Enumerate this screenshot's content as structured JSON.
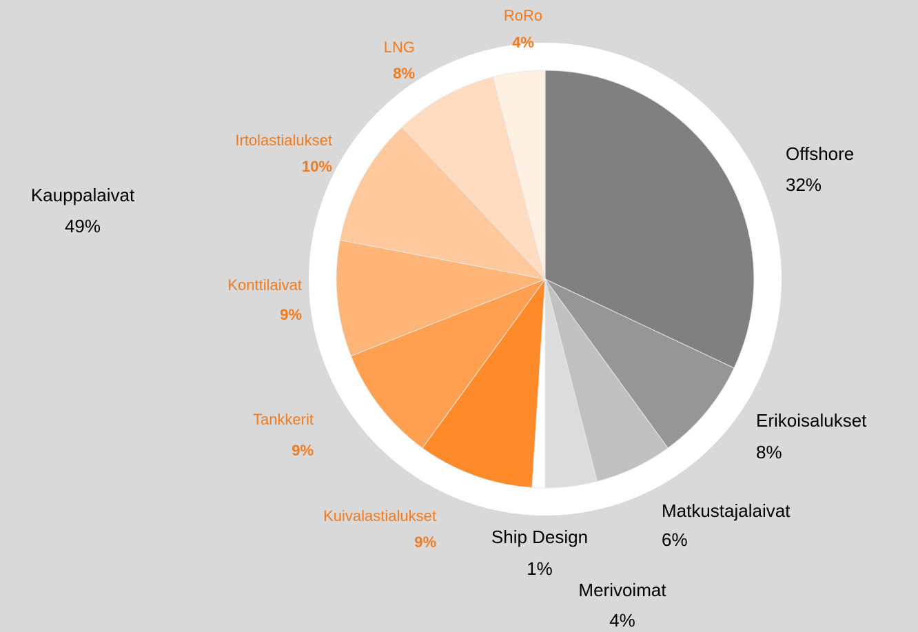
{
  "chart_data": {
    "type": "pie",
    "categories": [
      "Offshore",
      "Erikoisalukset",
      "Matkustajalaivat",
      "Merivoimat",
      "Ship Design",
      "Kuivalastialukset",
      "Tankkerit",
      "Konttilaivat",
      "Irtolastialukset",
      "LNG",
      "RoRo"
    ],
    "values": [
      32,
      8,
      6,
      4,
      1,
      9,
      9,
      9,
      10,
      8,
      4
    ],
    "value_labels": [
      "32%",
      "8%",
      "6%",
      "4%",
      "1%",
      "9%",
      "9%",
      "9%",
      "10%",
      "8%",
      "4%"
    ],
    "colors": [
      "#808080",
      "#969696",
      "#c0c0c0",
      "#dcdcdc",
      "#ffffff",
      "#ff8a2a",
      "#ffa050",
      "#ffb578",
      "#ffc89d",
      "#ffdcbf",
      "#fff0e4"
    ],
    "label_colors": [
      "#000000",
      "#000000",
      "#000000",
      "#000000",
      "#000000",
      "#f07b1f",
      "#f07b1f",
      "#f07b1f",
      "#f07b1f",
      "#f07b1f",
      "#f07b1f"
    ],
    "group": {
      "name": "Kauppalaivat",
      "value": 49,
      "value_label": "49%"
    }
  }
}
